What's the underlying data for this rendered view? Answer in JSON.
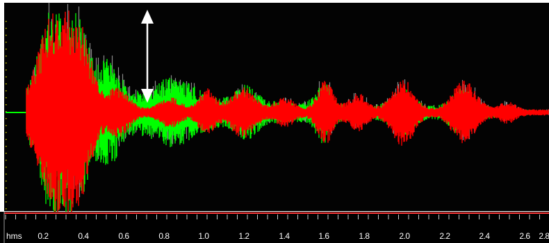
{
  "time_ruler": {
    "unit_label": "hms",
    "tick_labels": [
      "0.2",
      "0.4",
      "0.6",
      "0.8",
      "1.0",
      "1.2",
      "1.4",
      "1.6",
      "1.8",
      "2.0",
      "2.2",
      "2.4",
      "2.6",
      "2.8"
    ]
  },
  "colors": {
    "plot_background": "#030303",
    "waveform_green": "#00ff00",
    "waveform_red": "#ff0000",
    "waveform_grey": "#8c8c8c",
    "marker_arrow": "#ffffff",
    "ruler_background": "#000000",
    "ruler_line": "#ff3a3a",
    "level_dots": "#c8c800"
  },
  "icons": {
    "amplitude_marker": "double-headed-arrow-icon"
  }
}
